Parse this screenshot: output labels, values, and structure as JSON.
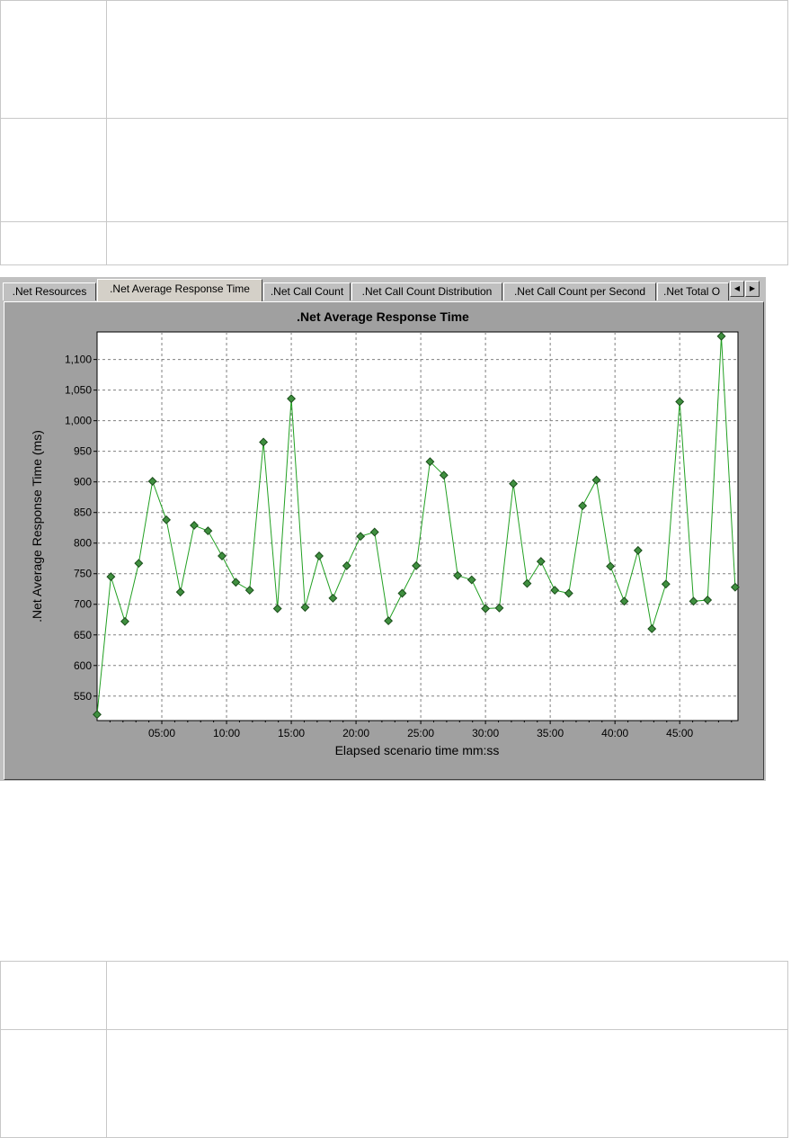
{
  "tabs": [
    {
      "label": ".Net Resources",
      "active": false
    },
    {
      "label": ".Net Average Response Time",
      "active": true
    },
    {
      "label": ".Net Call Count",
      "active": false
    },
    {
      "label": ".Net Call Count Distribution",
      "active": false
    },
    {
      "label": ".Net Call Count per Second",
      "active": false
    },
    {
      "label": ".Net Total O",
      "active": false
    }
  ],
  "scroll": {
    "left_icon": "arrow-left-icon",
    "right_icon": "arrow-right-icon"
  },
  "colors": {
    "line": "#22a022",
    "marker": "#3f8f3f",
    "plot_bg": "#ffffff",
    "panel_bg": "#a0a0a0"
  },
  "chart_data": {
    "type": "line",
    "title": ".Net Average Response Time",
    "xlabel": "Elapsed scenario time mm:ss",
    "ylabel": ".Net Average Response Time (ms)",
    "grid": true,
    "xlim_seconds": [
      0,
      2970
    ],
    "ylim": [
      510,
      1145
    ],
    "x_ticks": [
      "05:00",
      "10:00",
      "15:00",
      "20:00",
      "25:00",
      "30:00",
      "35:00",
      "40:00",
      "45:00"
    ],
    "y_ticks": [
      "550",
      "600",
      "650",
      "700",
      "750",
      "800",
      "850",
      "900",
      "950",
      "1,000",
      "1,050",
      "1,100"
    ],
    "series": [
      {
        "x": [
          "00:00",
          "01:04",
          "02:09",
          "03:13",
          "04:17",
          "05:21",
          "06:26",
          "07:30",
          "08:34",
          "09:39",
          "10:43",
          "11:47",
          "12:51",
          "13:56",
          "15:00",
          "16:04",
          "17:09",
          "18:13",
          "19:17",
          "20:21",
          "21:26",
          "22:30",
          "23:34",
          "24:39",
          "25:43",
          "26:47",
          "27:51",
          "28:56",
          "30:00",
          "31:04",
          "32:09",
          "33:13",
          "34:17",
          "35:21",
          "36:26",
          "37:30",
          "38:34",
          "39:39",
          "40:43",
          "41:47",
          "42:51",
          "43:56",
          "45:00",
          "46:04",
          "47:09",
          "48:13",
          "49:17"
        ],
        "y": [
          520,
          745,
          672,
          767,
          901,
          838,
          720,
          829,
          820,
          779,
          736,
          723,
          965,
          693,
          1036,
          695,
          779,
          710,
          763,
          811,
          818,
          673,
          718,
          763,
          933,
          911,
          747,
          740,
          693,
          694,
          897,
          734,
          770,
          723,
          718,
          861,
          903,
          762,
          705,
          788,
          660,
          733,
          1031,
          705,
          707,
          1138,
          728
        ]
      }
    ]
  }
}
